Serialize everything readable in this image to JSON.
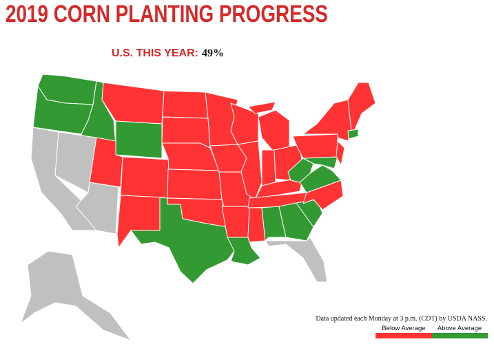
{
  "header": {
    "title": "2019 CORN PLANTING PROGRESS",
    "us_label": "U.S. THIS YEAR:",
    "us_value": "49%"
  },
  "footnote": "Data updated each Monday at 3 p.m. (CDT) by USDA NASS.",
  "legend": [
    {
      "label": "Below Average",
      "color": "#ff3333"
    },
    {
      "label": "Above Average",
      "color": "#339933"
    }
  ]
}
